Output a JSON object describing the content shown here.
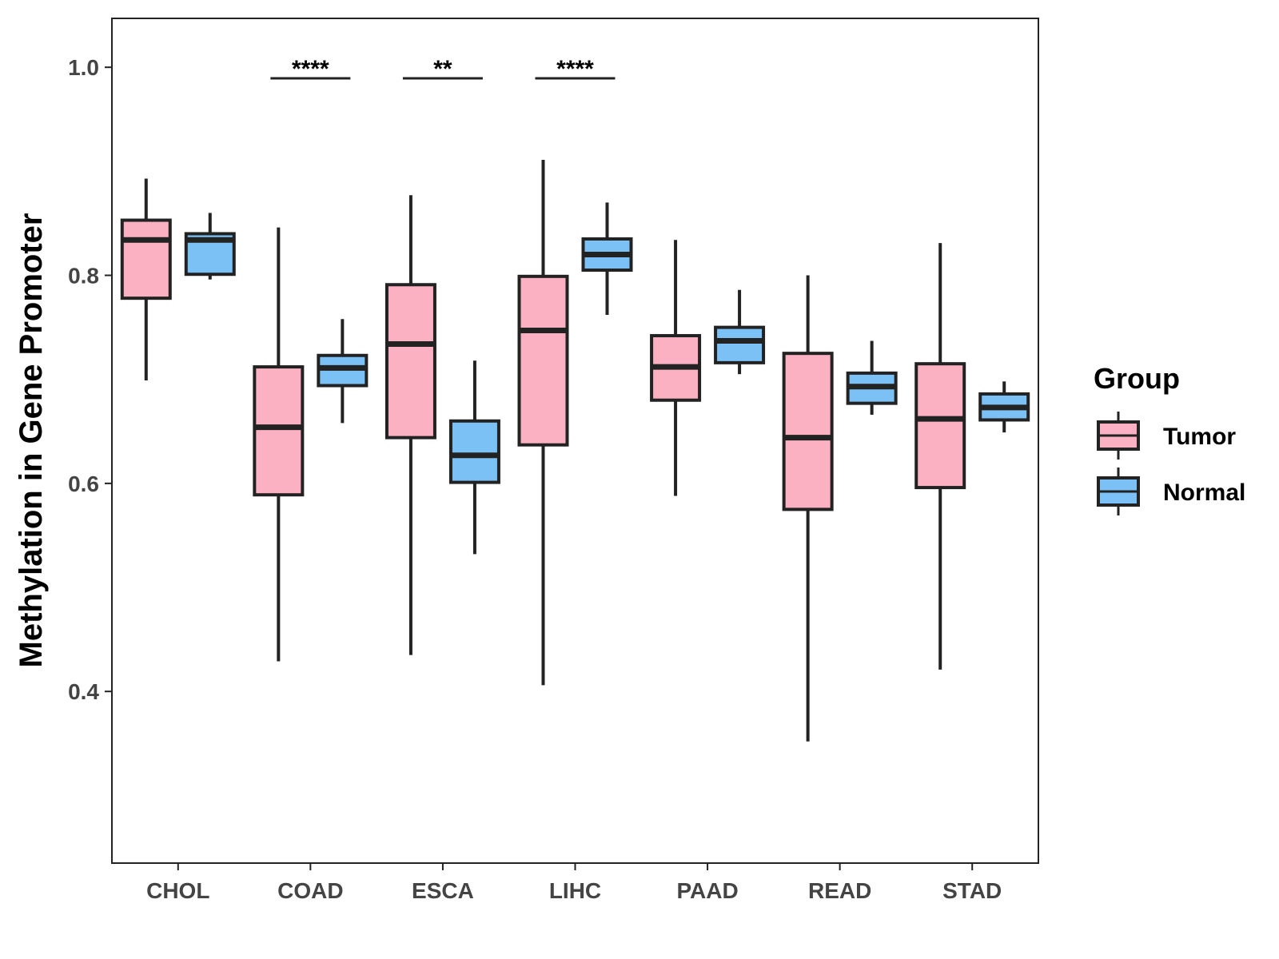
{
  "chart_data": {
    "type": "boxplot",
    "ylabel": "Methylation in Gene Promoter",
    "xlabel": "",
    "ylim": [
      0.235,
      1.047
    ],
    "yticks": [
      0.4,
      0.6,
      0.8,
      1.0
    ],
    "ytick_labels": [
      "0.4",
      "0.6",
      "0.8",
      "1.0"
    ],
    "categories": [
      "CHOL",
      "COAD",
      "ESCA",
      "LIHC",
      "PAAD",
      "READ",
      "STAD"
    ],
    "legend": {
      "title": "Group",
      "position": "right",
      "items": [
        {
          "name": "Tumor",
          "color": "#FBB1C2"
        },
        {
          "name": "Normal",
          "color": "#7CC1F5"
        }
      ]
    },
    "series": [
      {
        "name": "Tumor",
        "color": "#FBB1C2",
        "boxes": [
          {
            "category": "CHOL",
            "whisker_low": 0.699,
            "q1": 0.778,
            "median": 0.834,
            "q3": 0.853,
            "whisker_high": 0.893
          },
          {
            "category": "COAD",
            "whisker_low": 0.429,
            "q1": 0.589,
            "median": 0.654,
            "q3": 0.712,
            "whisker_high": 0.846
          },
          {
            "category": "ESCA",
            "whisker_low": 0.435,
            "q1": 0.644,
            "median": 0.734,
            "q3": 0.791,
            "whisker_high": 0.877
          },
          {
            "category": "LIHC",
            "whisker_low": 0.406,
            "q1": 0.637,
            "median": 0.747,
            "q3": 0.799,
            "whisker_high": 0.911
          },
          {
            "category": "PAAD",
            "whisker_low": 0.588,
            "q1": 0.68,
            "median": 0.712,
            "q3": 0.742,
            "whisker_high": 0.834
          },
          {
            "category": "READ",
            "whisker_low": 0.352,
            "q1": 0.575,
            "median": 0.644,
            "q3": 0.725,
            "whisker_high": 0.8
          },
          {
            "category": "STAD",
            "whisker_low": 0.421,
            "q1": 0.596,
            "median": 0.662,
            "q3": 0.715,
            "whisker_high": 0.831
          }
        ]
      },
      {
        "name": "Normal",
        "color": "#7CC1F5",
        "boxes": [
          {
            "category": "CHOL",
            "whisker_low": 0.796,
            "q1": 0.801,
            "median": 0.834,
            "q3": 0.84,
            "whisker_high": 0.86
          },
          {
            "category": "COAD",
            "whisker_low": 0.658,
            "q1": 0.694,
            "median": 0.711,
            "q3": 0.723,
            "whisker_high": 0.758
          },
          {
            "category": "ESCA",
            "whisker_low": 0.532,
            "q1": 0.601,
            "median": 0.627,
            "q3": 0.66,
            "whisker_high": 0.718
          },
          {
            "category": "LIHC",
            "whisker_low": 0.762,
            "q1": 0.805,
            "median": 0.82,
            "q3": 0.835,
            "whisker_high": 0.87
          },
          {
            "category": "PAAD",
            "whisker_low": 0.705,
            "q1": 0.716,
            "median": 0.737,
            "q3": 0.75,
            "whisker_high": 0.786
          },
          {
            "category": "READ",
            "whisker_low": 0.666,
            "q1": 0.677,
            "median": 0.693,
            "q3": 0.706,
            "whisker_high": 0.737
          },
          {
            "category": "STAD",
            "whisker_low": 0.649,
            "q1": 0.661,
            "median": 0.673,
            "q3": 0.686,
            "whisker_high": 0.698
          }
        ]
      }
    ],
    "significance": [
      {
        "category": "COAD",
        "label": "****",
        "y": 0.994
      },
      {
        "category": "ESCA",
        "label": "**",
        "y": 0.994
      },
      {
        "category": "LIHC",
        "label": "****",
        "y": 0.994
      }
    ]
  }
}
